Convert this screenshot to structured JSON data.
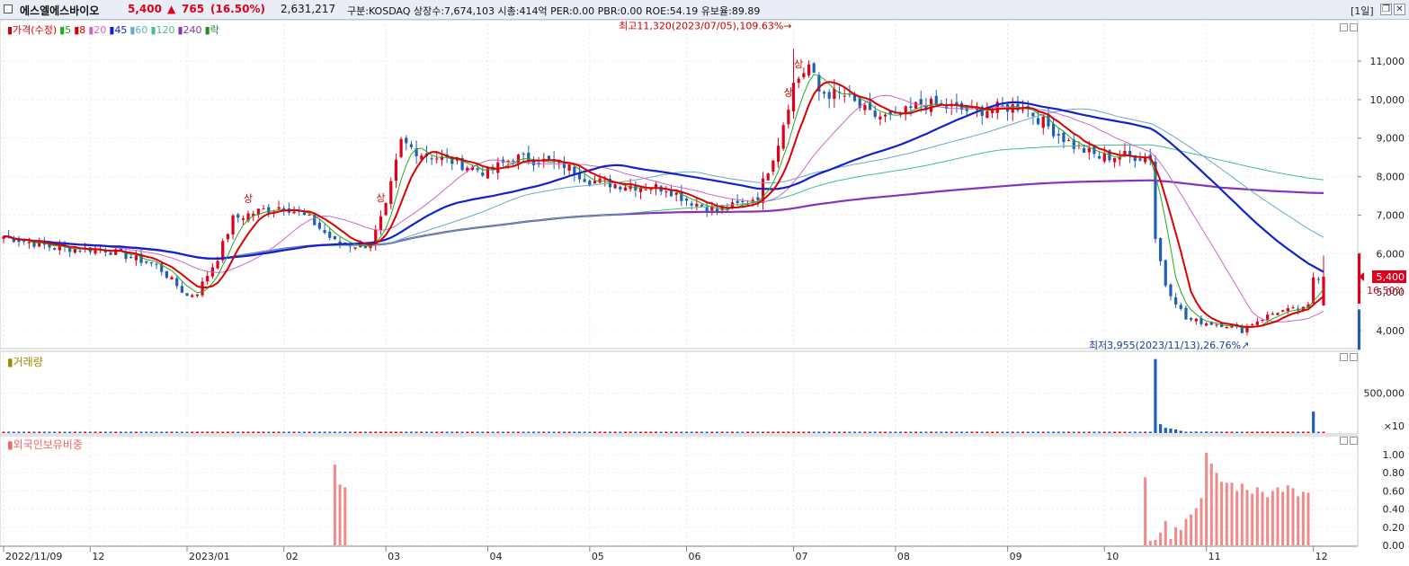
{
  "header": {
    "name": "에스엘에스바이오",
    "price": "5,400",
    "change": "765",
    "change_pct": "(16.50%)",
    "volume": "2,631,217",
    "info": "구분:KOSDAQ 상장수:7,674,103 시총:414억 PER:0.00 PBR:0.00 ROE:54.19 유보율:89.89",
    "period": "[1일]",
    "colors": {
      "up": "#e0001b",
      "down": "#1f5fb8"
    }
  },
  "legend": {
    "items": [
      {
        "text": "가격(수정)",
        "color": "#d60000"
      },
      {
        "text": "5",
        "color": "#22aa22"
      },
      {
        "text": "8",
        "color": "#dd0000"
      },
      {
        "text": "20",
        "color": "#cc66cc"
      },
      {
        "text": "45",
        "color": "#1122cc"
      },
      {
        "text": "60",
        "color": "#66aacc"
      },
      {
        "text": "120",
        "color": "#44bb99"
      },
      {
        "text": "240",
        "color": "#8833bb"
      },
      {
        "text": "락",
        "color": "#228822"
      }
    ]
  },
  "chart_data": [
    {
      "type": "candlestick",
      "panel": "price",
      "y_ticks": [
        "11,000",
        "10,000",
        "9,000",
        "8,000",
        "7,000",
        "6,000",
        "5,000",
        "4,000"
      ],
      "ylim": [
        3500,
        12000
      ],
      "x_ticks": [
        "2022/11/09",
        "12",
        "2023/01",
        "02",
        "03",
        "04",
        "05",
        "06",
        "07",
        "08",
        "09",
        "10",
        "11",
        "12"
      ],
      "x_tick_positions": [
        0,
        17,
        36,
        55,
        75,
        95,
        115,
        134,
        155,
        175,
        197,
        216,
        236,
        257
      ],
      "n_bars": 260,
      "key_closes": [
        [
          0,
          6450
        ],
        [
          10,
          6150
        ],
        [
          20,
          6100
        ],
        [
          30,
          5700
        ],
        [
          36,
          4900
        ],
        [
          38,
          5000
        ],
        [
          42,
          5900
        ],
        [
          45,
          6900
        ],
        [
          50,
          7100
        ],
        [
          55,
          7250
        ],
        [
          60,
          6900
        ],
        [
          65,
          6300
        ],
        [
          70,
          6200
        ],
        [
          72,
          6250
        ],
        [
          75,
          7200
        ],
        [
          78,
          8900
        ],
        [
          82,
          8600
        ],
        [
          88,
          8400
        ],
        [
          95,
          8100
        ],
        [
          100,
          8500
        ],
        [
          106,
          8400
        ],
        [
          110,
          8300
        ],
        [
          115,
          7900
        ],
        [
          120,
          7800
        ],
        [
          130,
          7700
        ],
        [
          134,
          7400
        ],
        [
          140,
          7100
        ],
        [
          145,
          7300
        ],
        [
          148,
          7500
        ],
        [
          152,
          8900
        ],
        [
          155,
          10400
        ],
        [
          158,
          10900
        ],
        [
          160,
          10200
        ],
        [
          165,
          10100
        ],
        [
          170,
          9600
        ],
        [
          175,
          9500
        ],
        [
          180,
          9900
        ],
        [
          190,
          9700
        ],
        [
          200,
          9850
        ],
        [
          205,
          9300
        ],
        [
          210,
          8800
        ],
        [
          215,
          8500
        ],
        [
          220,
          8550
        ],
        [
          225,
          8500
        ],
        [
          226,
          6400
        ],
        [
          228,
          5200
        ],
        [
          232,
          4300
        ],
        [
          236,
          4200
        ],
        [
          240,
          4150
        ],
        [
          243,
          4000
        ],
        [
          245,
          4200
        ],
        [
          250,
          4500
        ],
        [
          255,
          4550
        ],
        [
          256,
          4635
        ],
        [
          257,
          5400
        ]
      ],
      "annotations": [
        {
          "text": "최고11,320(2023/07/05),109.63%",
          "value": 11320
        },
        {
          "text": "최저3,955(2023/11/13),26.76%",
          "value": 3955
        },
        {
          "text": "상",
          "bar": 48
        },
        {
          "text": "상",
          "bar": 74
        },
        {
          "text": "상",
          "bar": 154
        },
        {
          "text": "상",
          "bar": 156
        }
      ],
      "current": {
        "price": "5,400",
        "pct": "16.50%"
      }
    },
    {
      "type": "bar",
      "panel": "volume",
      "title": "거래량",
      "y_ticks": [
        "500,000"
      ],
      "unit_label": "×10",
      "spikes": [
        [
          226,
          1.0
        ],
        [
          227,
          0.12
        ],
        [
          228,
          0.07
        ],
        [
          229,
          0.06
        ],
        [
          230,
          0.05
        ],
        [
          231,
          0.03
        ],
        [
          234,
          0.02
        ],
        [
          236,
          0.02
        ],
        [
          238,
          0.01
        ],
        [
          257,
          0.29
        ]
      ]
    },
    {
      "type": "bar",
      "panel": "foreign",
      "title": "외국인보유비중",
      "y_ticks": [
        "1.00",
        "0.80",
        "0.60",
        "0.40",
        "0.20",
        "0.00"
      ],
      "ylim": [
        0,
        1.1
      ],
      "values": [
        [
          65,
          0.89
        ],
        [
          66,
          0.67
        ],
        [
          67,
          0.64
        ],
        [
          224,
          0.75
        ],
        [
          225,
          0.05
        ],
        [
          226,
          0.06
        ],
        [
          227,
          0.14
        ],
        [
          228,
          0.27
        ],
        [
          229,
          0.07
        ],
        [
          230,
          0.2
        ],
        [
          231,
          0.17
        ],
        [
          232,
          0.29
        ],
        [
          233,
          0.34
        ],
        [
          234,
          0.41
        ],
        [
          235,
          0.52
        ],
        [
          236,
          1.02
        ],
        [
          237,
          0.9
        ],
        [
          238,
          0.8
        ],
        [
          239,
          0.7
        ],
        [
          240,
          0.69
        ],
        [
          241,
          0.69
        ],
        [
          242,
          0.6
        ],
        [
          243,
          0.68
        ],
        [
          244,
          0.61
        ],
        [
          245,
          0.57
        ],
        [
          246,
          0.64
        ],
        [
          247,
          0.59
        ],
        [
          248,
          0.53
        ],
        [
          249,
          0.6
        ],
        [
          250,
          0.64
        ],
        [
          251,
          0.59
        ],
        [
          252,
          0.66
        ],
        [
          253,
          0.63
        ],
        [
          254,
          0.54
        ],
        [
          255,
          0.59
        ],
        [
          256,
          0.58
        ]
      ]
    }
  ]
}
